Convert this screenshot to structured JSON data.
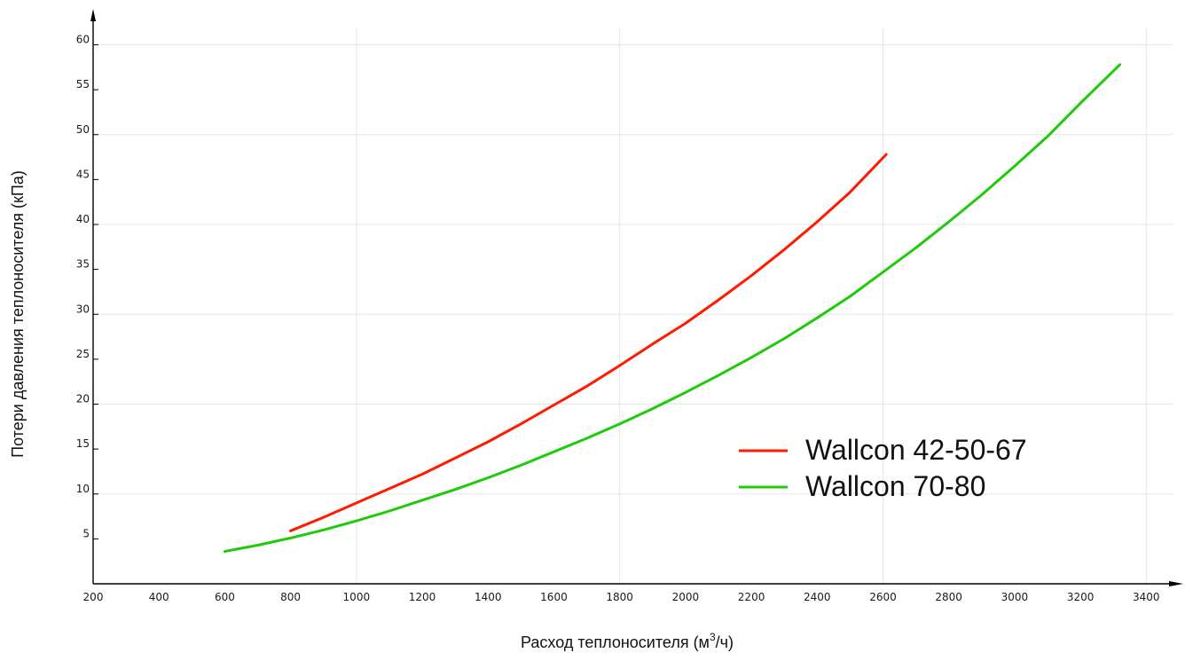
{
  "chart_data": {
    "type": "line",
    "title": "",
    "xlabel": "Расход теплоносителя (м³/ч)",
    "xlabel_main": "Расход теплоносителя (м",
    "xlabel_sup": "3",
    "xlabel_tail": "/ч)",
    "ylabel": "Потери давления теплоносителя (кПа)",
    "xlim": [
      200,
      3480
    ],
    "ylim": [
      0,
      64
    ],
    "x_ticks": [
      200,
      400,
      600,
      800,
      1000,
      1200,
      1400,
      1600,
      1800,
      2000,
      2200,
      2400,
      2600,
      2800,
      3000,
      3200,
      3400
    ],
    "y_ticks": [
      5,
      10,
      15,
      20,
      25,
      30,
      35,
      40,
      45,
      50,
      55,
      60
    ],
    "x_grid": [
      1000,
      1800,
      2600,
      3400
    ],
    "y_grid": [
      10,
      20,
      30,
      40,
      50,
      60
    ],
    "grid": true,
    "legend_position": "right",
    "series": [
      {
        "name": "Wallcon 42-50-67",
        "color": "#ff1a00",
        "x": [
          800,
          900,
          1000,
          1100,
          1200,
          1300,
          1400,
          1500,
          1600,
          1700,
          1800,
          1900,
          2000,
          2100,
          2200,
          2300,
          2400,
          2500,
          2610
        ],
        "y": [
          5.9,
          7.4,
          9.0,
          10.6,
          12.2,
          14.0,
          15.8,
          17.8,
          19.9,
          22.0,
          24.3,
          26.7,
          29.0,
          31.6,
          34.3,
          37.2,
          40.3,
          43.6,
          47.8
        ]
      },
      {
        "name": "Wallcon 70-80",
        "color": "#1ecb0a",
        "x": [
          600,
          700,
          800,
          900,
          1000,
          1100,
          1200,
          1300,
          1400,
          1500,
          1600,
          1700,
          1800,
          1900,
          2000,
          2100,
          2200,
          2300,
          2400,
          2500,
          2600,
          2700,
          2800,
          2900,
          3000,
          3100,
          3200,
          3320
        ],
        "y": [
          3.6,
          4.3,
          5.1,
          6.0,
          7.0,
          8.1,
          9.3,
          10.5,
          11.8,
          13.2,
          14.7,
          16.2,
          17.8,
          19.5,
          21.3,
          23.2,
          25.2,
          27.3,
          29.6,
          32.0,
          34.7,
          37.4,
          40.3,
          43.3,
          46.5,
          49.8,
          53.5,
          57.8
        ]
      }
    ]
  }
}
